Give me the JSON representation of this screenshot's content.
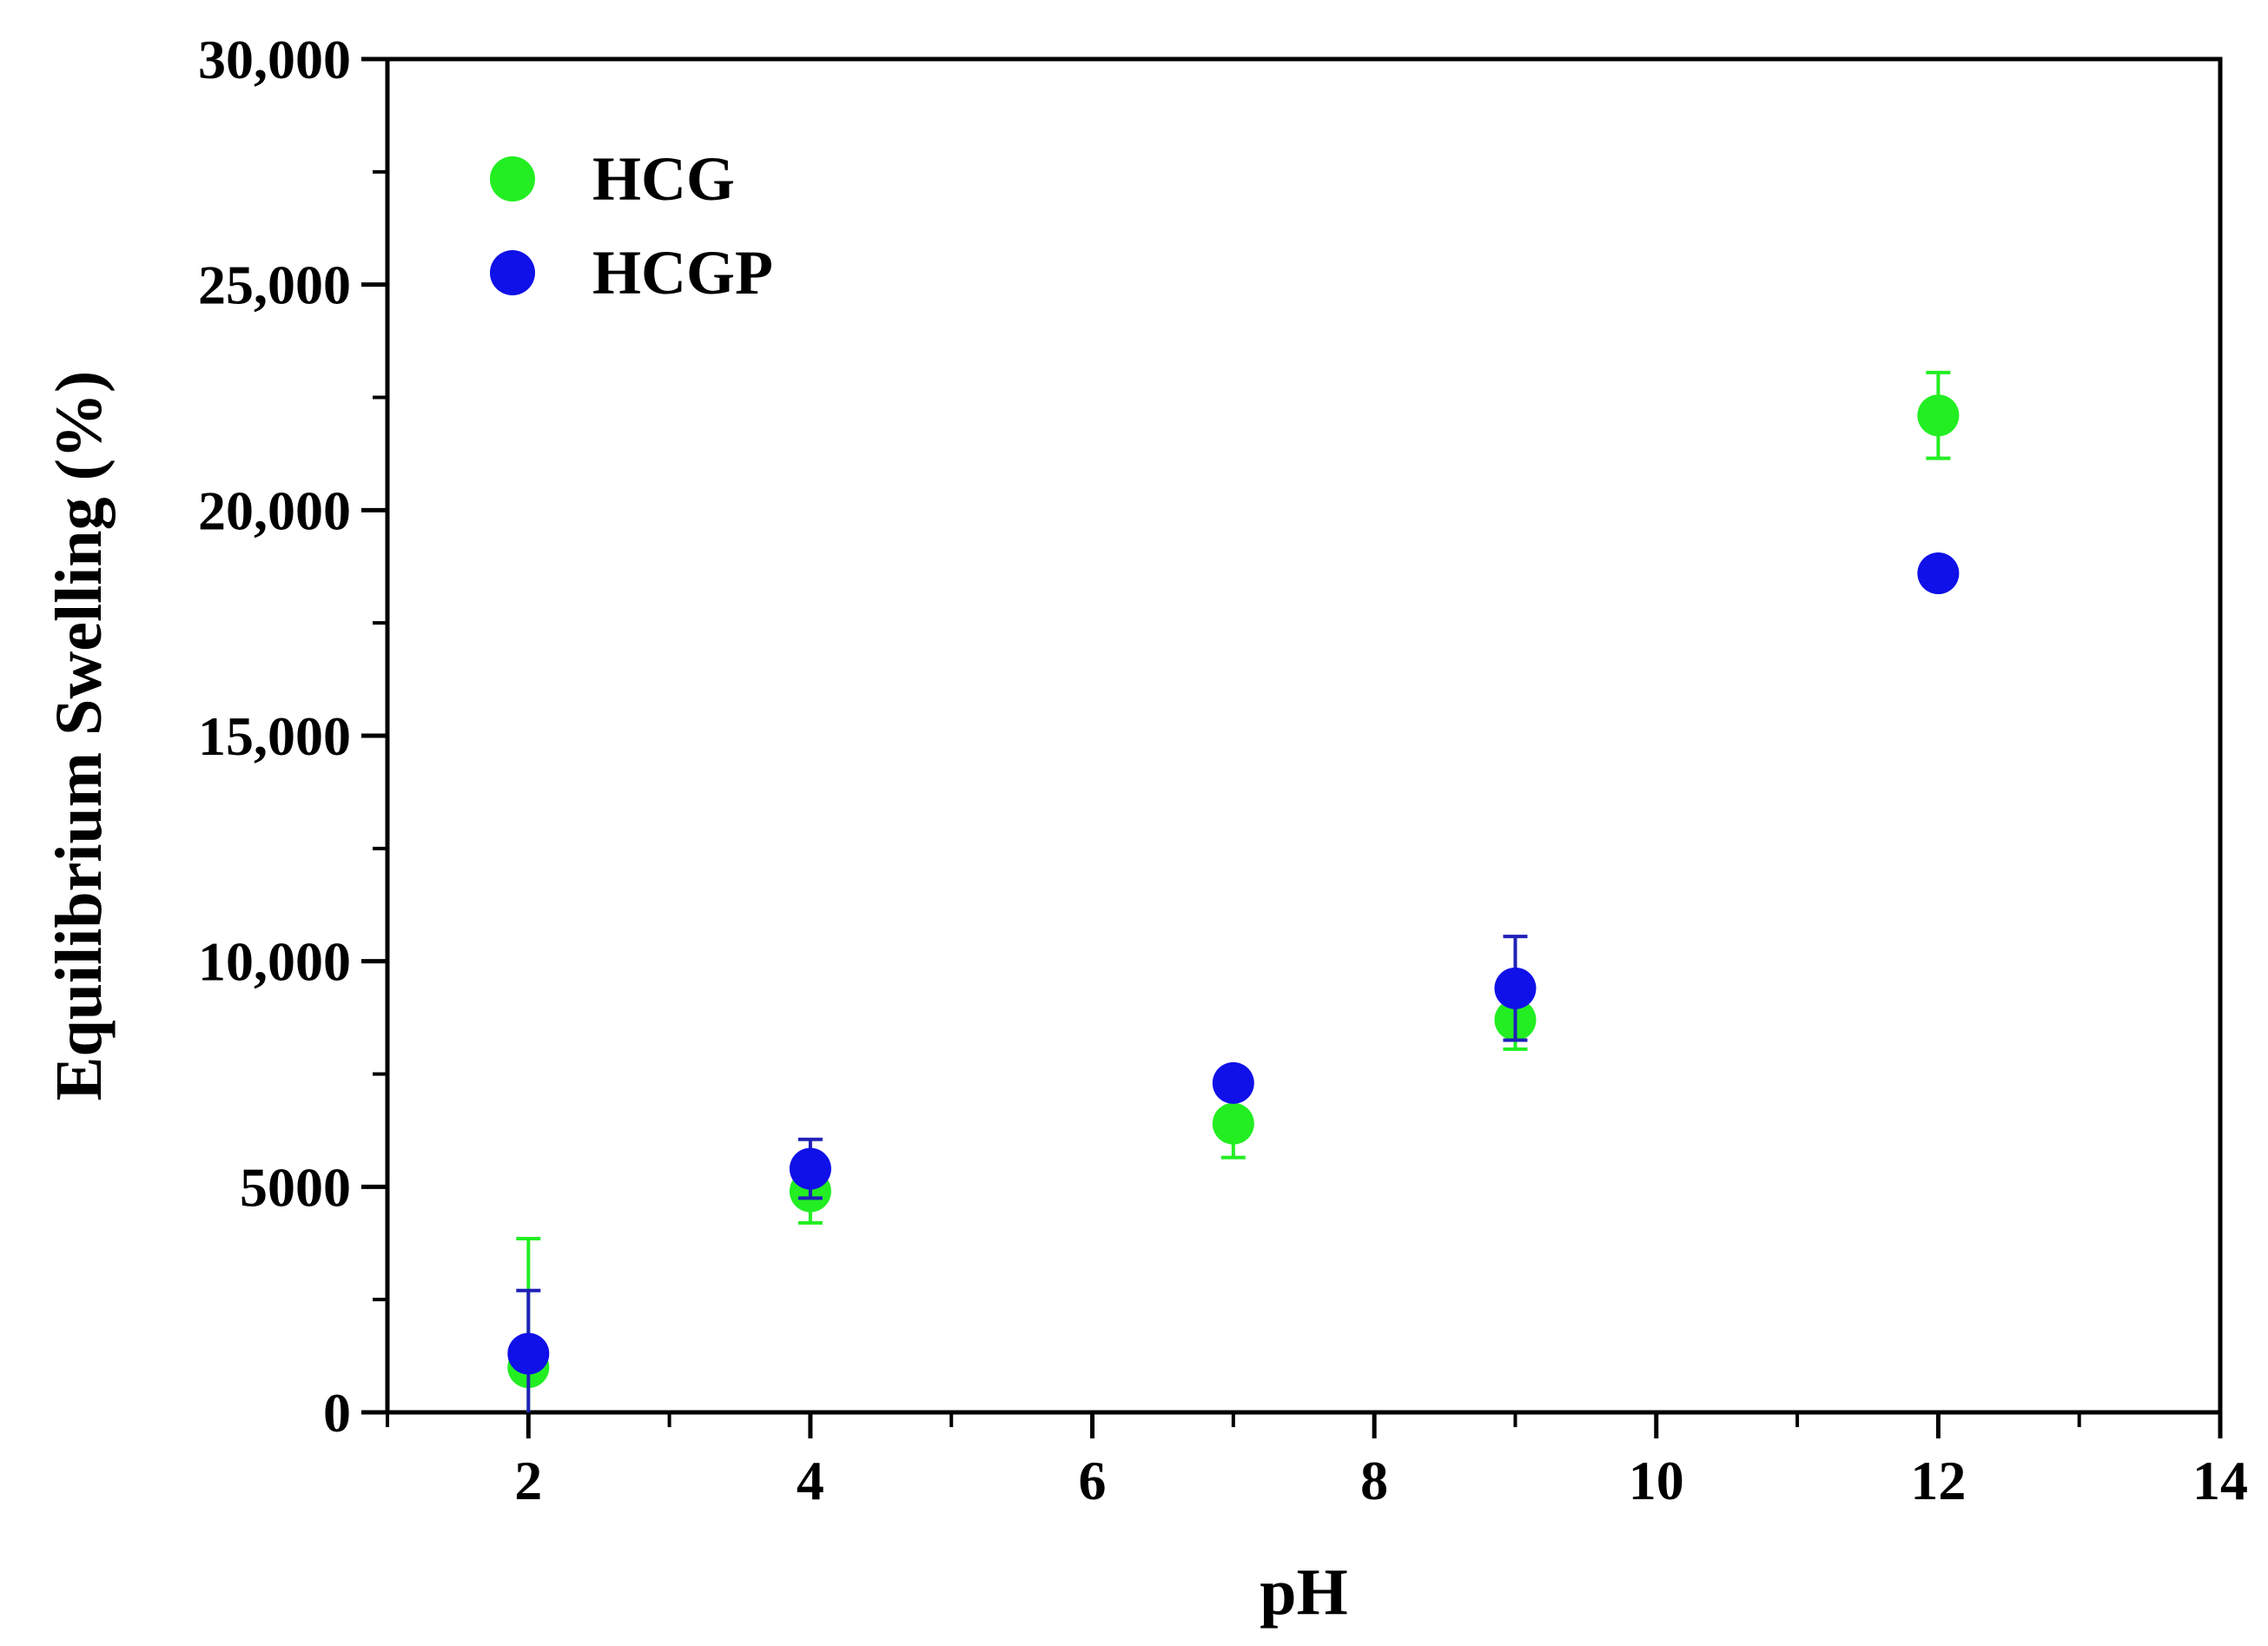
{
  "chart_data": {
    "type": "scatter",
    "title": "",
    "xlabel": "pH",
    "ylabel": "Equilibrium Swelling (%)",
    "xlim": [
      1,
      14
    ],
    "ylim": [
      0,
      30000
    ],
    "x_ticks": [
      2,
      4,
      6,
      8,
      10,
      12,
      14
    ],
    "x_tick_labels": [
      "2",
      "4",
      "6",
      "8",
      "10",
      "12",
      "14"
    ],
    "y_ticks": [
      0,
      5000,
      10000,
      15000,
      20000,
      25000,
      30000
    ],
    "y_tick_labels": [
      "0",
      "5000",
      "10,000",
      "15,000",
      "20,000",
      "25,000",
      "30,000"
    ],
    "grid": false,
    "legend_position": "top-left",
    "series": [
      {
        "name": "HCG",
        "color": "#22ee22",
        "errorbar_color": "#22ee22",
        "x": [
          2,
          4,
          7,
          9,
          12
        ],
        "y": [
          1000,
          4900,
          6400,
          8700,
          22100
        ],
        "err": [
          2850,
          700,
          750,
          650,
          950
        ]
      },
      {
        "name": "HCGP",
        "color": "#1010e8",
        "errorbar_color": "#2020b8",
        "x": [
          2,
          4,
          7,
          9,
          12
        ],
        "y": [
          1300,
          5400,
          7300,
          9400,
          18600
        ],
        "err": [
          1400,
          650,
          200,
          1150,
          300
        ]
      }
    ]
  }
}
